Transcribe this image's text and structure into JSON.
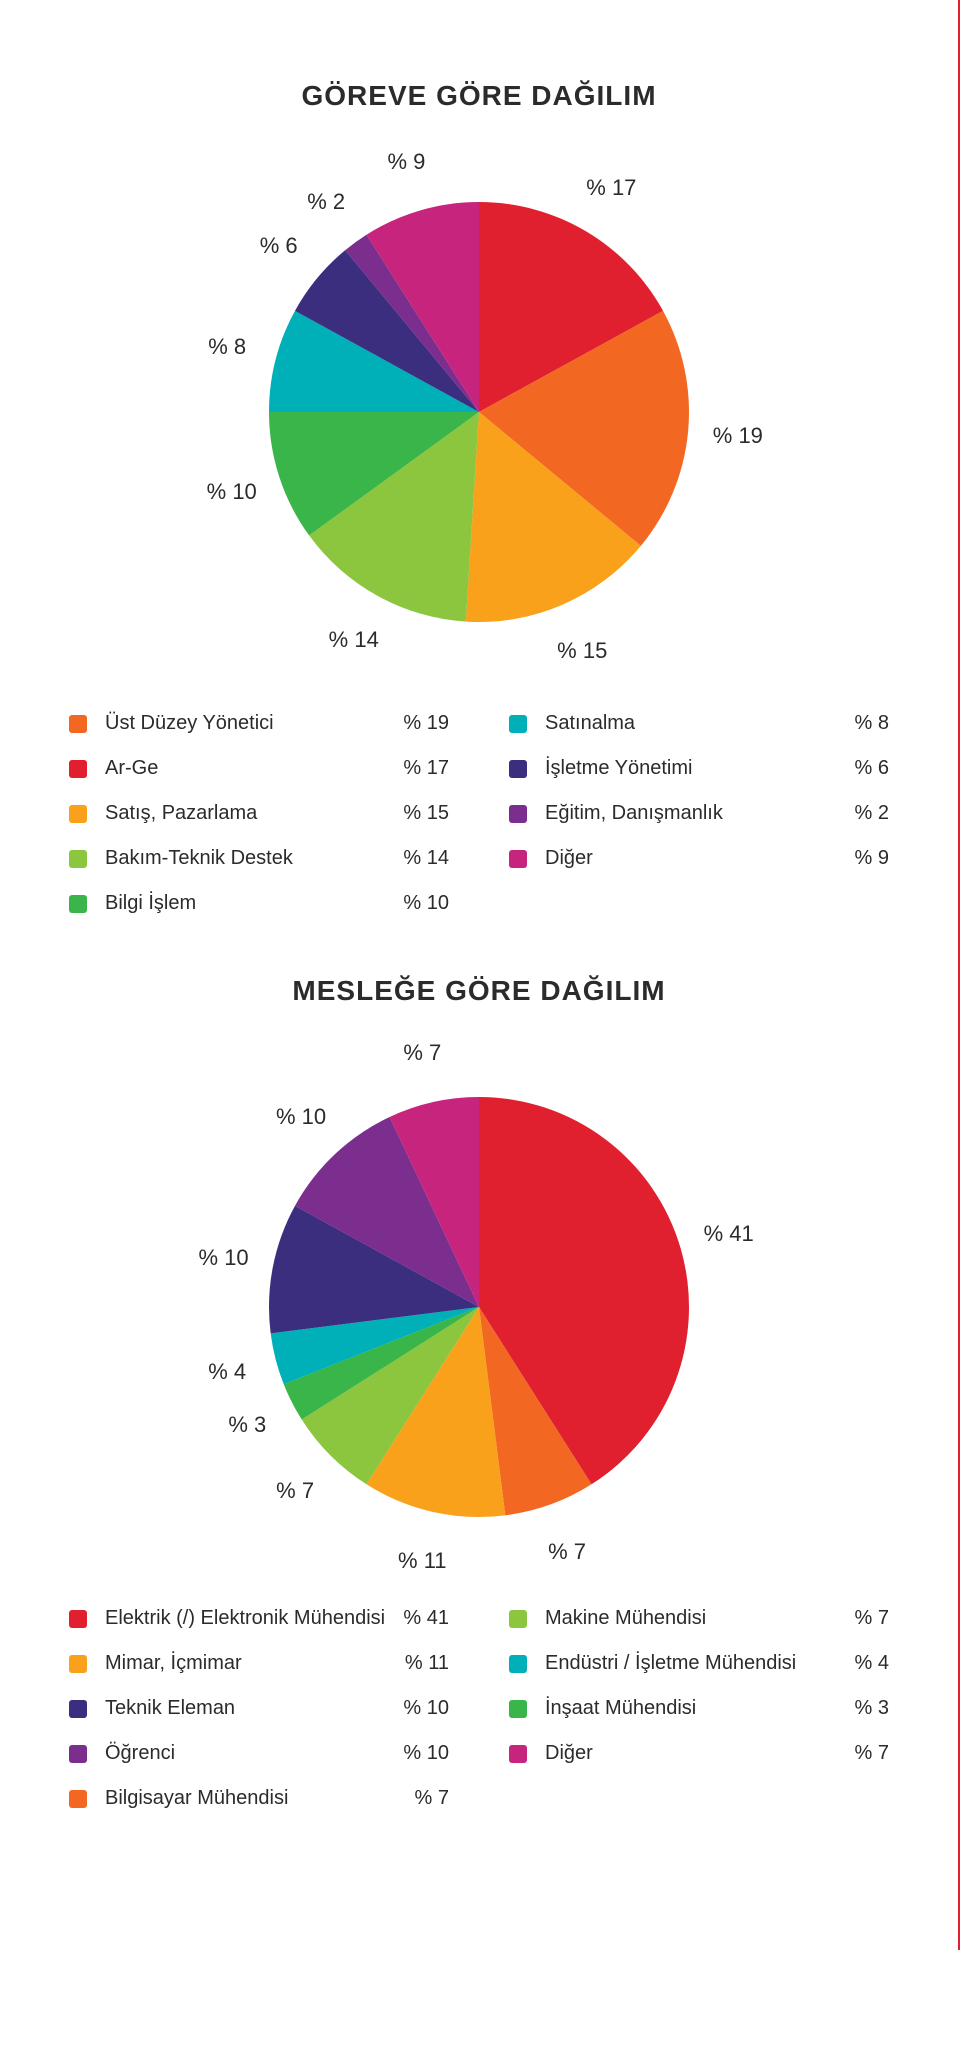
{
  "charts": [
    {
      "title": "GÖREVE GÖRE DAĞILIM",
      "type": "pie",
      "radius": 210,
      "label_radius": 260,
      "background_color": "#ffffff",
      "label_fontsize": 22,
      "title_fontsize": 28,
      "slices": [
        {
          "label": "Ar-Ge",
          "value": 17,
          "color": "#e0202e",
          "display": "% 17"
        },
        {
          "label": "Üst Düzey Yönetici",
          "value": 19,
          "color": "#f26823",
          "display": "% 19"
        },
        {
          "label": "Satış, Pazarlama",
          "value": 15,
          "color": "#f9a11b",
          "display": "% 15"
        },
        {
          "label": "Bakım-Teknik Destek",
          "value": 14,
          "color": "#8cc63f",
          "display": "% 14"
        },
        {
          "label": "Bilgi İşlem",
          "value": 10,
          "color": "#39b54a",
          "display": "% 10"
        },
        {
          "label": "Satınalma",
          "value": 8,
          "color": "#00b0b9",
          "display": "% 8"
        },
        {
          "label": "İşletme Yönetimi",
          "value": 6,
          "color": "#3b2e7e",
          "display": "% 6"
        },
        {
          "label": "Eğitim, Danışmanlık",
          "value": 2,
          "color": "#7b2e8d",
          "display": "% 2"
        },
        {
          "label": "Diğer",
          "value": 9,
          "color": "#c6247d",
          "display": "% 9"
        }
      ],
      "legend_columns": [
        [
          {
            "label": "Üst Düzey Yönetici",
            "value": "% 19",
            "color": "#f26823"
          },
          {
            "label": "Ar-Ge",
            "value": "% 17",
            "color": "#e0202e"
          },
          {
            "label": "Satış, Pazarlama",
            "value": "% 15",
            "color": "#f9a11b"
          },
          {
            "label": "Bakım-Teknik Destek",
            "value": "% 14",
            "color": "#8cc63f"
          },
          {
            "label": "Bilgi İşlem",
            "value": "% 10",
            "color": "#39b54a"
          }
        ],
        [
          {
            "label": "Satınalma",
            "value": "% 8",
            "color": "#00b0b9"
          },
          {
            "label": "İşletme Yönetimi",
            "value": "% 6",
            "color": "#3b2e7e"
          },
          {
            "label": "Eğitim, Danışmanlık",
            "value": "% 2",
            "color": "#7b2e8d"
          },
          {
            "label": "Diğer",
            "value": "% 9",
            "color": "#c6247d"
          }
        ]
      ]
    },
    {
      "title": "MESLEĞE GÖRE DAĞILIM",
      "type": "pie",
      "radius": 210,
      "label_radius": 260,
      "background_color": "#ffffff",
      "label_fontsize": 22,
      "title_fontsize": 28,
      "slices": [
        {
          "label": "Elektrik (/) Elektronik Mühendisi",
          "value": 41,
          "color": "#e0202e",
          "display": "% 41"
        },
        {
          "label": "Bilgisayar Mühendisi",
          "value": 7,
          "color": "#f26823",
          "display": "% 7"
        },
        {
          "label": "Mimar, İçmimar",
          "value": 11,
          "color": "#f9a11b",
          "display": "% 11"
        },
        {
          "label": "Makine Mühendisi",
          "value": 7,
          "color": "#8cc63f",
          "display": "% 7"
        },
        {
          "label": "İnşaat Mühendisi",
          "value": 3,
          "color": "#39b54a",
          "display": "% 3"
        },
        {
          "label": "Endüstri / İşletme Mühendisi",
          "value": 4,
          "color": "#00b0b9",
          "display": "% 4"
        },
        {
          "label": "Teknik Eleman",
          "value": 10,
          "color": "#3b2e7e",
          "display": "% 10"
        },
        {
          "label": "Öğrenci",
          "value": 10,
          "color": "#7b2e8d",
          "display": "% 10"
        },
        {
          "label": "Diğer",
          "value": 7,
          "color": "#c6247d",
          "display": "% 7"
        }
      ],
      "legend_columns": [
        [
          {
            "label": "Elektrik (/) Elektronik Mühendisi",
            "value": "% 41",
            "color": "#e0202e"
          },
          {
            "label": "Mimar, İçmimar",
            "value": "% 11",
            "color": "#f9a11b"
          },
          {
            "label": "Teknik Eleman",
            "value": "% 10",
            "color": "#3b2e7e"
          },
          {
            "label": "Öğrenci",
            "value": "% 10",
            "color": "#7b2e8d"
          },
          {
            "label": "Bilgisayar Mühendisi",
            "value": "% 7",
            "color": "#f26823"
          }
        ],
        [
          {
            "label": "Makine Mühendisi",
            "value": "% 7",
            "color": "#8cc63f"
          },
          {
            "label": "Endüstri / İşletme Mühendisi",
            "value": "% 4",
            "color": "#00b0b9"
          },
          {
            "label": "İnşaat Mühendisi",
            "value": "% 3",
            "color": "#39b54a"
          },
          {
            "label": "Diğer",
            "value": "% 7",
            "color": "#c6247d"
          }
        ]
      ]
    }
  ]
}
